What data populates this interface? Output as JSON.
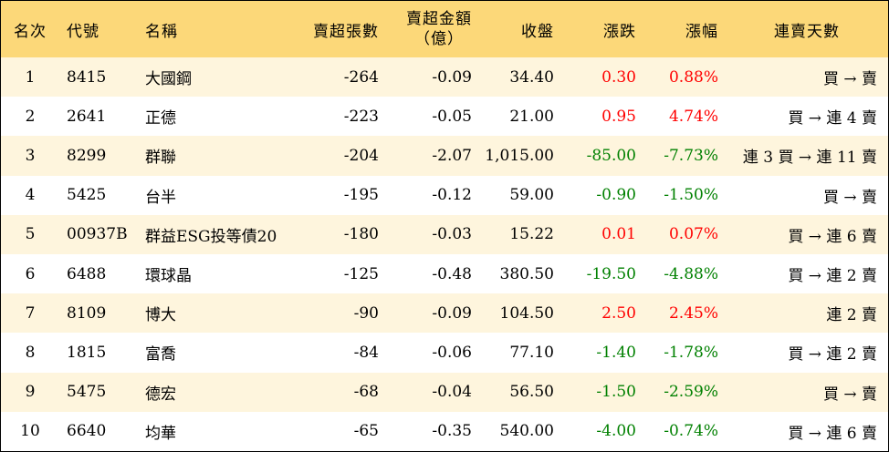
{
  "headers": {
    "rank": "名次",
    "code": "代號",
    "name": "名稱",
    "net_sell_qty": "賣超張數",
    "net_sell_amt_line1": "賣超金額",
    "net_sell_amt_line2": "（億）",
    "close": "收盤",
    "change": "漲跌",
    "change_pct": "漲幅",
    "streak": "連賣天數"
  },
  "colors": {
    "header_bg": "#fcd879",
    "odd_row_bg": "#fef5dd",
    "up": "#ff0000",
    "down": "#008000"
  },
  "rows": [
    {
      "rank": "1",
      "code": "8415",
      "name": "大國鋼",
      "qty": "-264",
      "amt": "-0.09",
      "close": "34.40",
      "change": "0.30",
      "pct": "0.88%",
      "dir": "up",
      "streak": "買 → 賣"
    },
    {
      "rank": "2",
      "code": "2641",
      "name": "正德",
      "qty": "-223",
      "amt": "-0.05",
      "close": "21.00",
      "change": "0.95",
      "pct": "4.74%",
      "dir": "up",
      "streak": "買 → 連 4 賣"
    },
    {
      "rank": "3",
      "code": "8299",
      "name": "群聯",
      "qty": "-204",
      "amt": "-2.07",
      "close": "1,015.00",
      "change": "-85.00",
      "pct": "-7.73%",
      "dir": "down",
      "streak": "連 3 買 → 連 11 賣"
    },
    {
      "rank": "4",
      "code": "5425",
      "name": "台半",
      "qty": "-195",
      "amt": "-0.12",
      "close": "59.00",
      "change": "-0.90",
      "pct": "-1.50%",
      "dir": "down",
      "streak": "買 → 賣"
    },
    {
      "rank": "5",
      "code": "00937B",
      "name": "群益ESG投等債20",
      "qty": "-180",
      "amt": "-0.03",
      "close": "15.22",
      "change": "0.01",
      "pct": "0.07%",
      "dir": "up",
      "streak": "買 → 連 6 賣"
    },
    {
      "rank": "6",
      "code": "6488",
      "name": "環球晶",
      "qty": "-125",
      "amt": "-0.48",
      "close": "380.50",
      "change": "-19.50",
      "pct": "-4.88%",
      "dir": "down",
      "streak": "買 → 連 2 賣"
    },
    {
      "rank": "7",
      "code": "8109",
      "name": "博大",
      "qty": "-90",
      "amt": "-0.09",
      "close": "104.50",
      "change": "2.50",
      "pct": "2.45%",
      "dir": "up",
      "streak": "連 2 賣"
    },
    {
      "rank": "8",
      "code": "1815",
      "name": "富喬",
      "qty": "-84",
      "amt": "-0.06",
      "close": "77.10",
      "change": "-1.40",
      "pct": "-1.78%",
      "dir": "down",
      "streak": "買 → 連 2 賣"
    },
    {
      "rank": "9",
      "code": "5475",
      "name": "德宏",
      "qty": "-68",
      "amt": "-0.04",
      "close": "56.50",
      "change": "-1.50",
      "pct": "-2.59%",
      "dir": "down",
      "streak": "買 → 賣"
    },
    {
      "rank": "10",
      "code": "6640",
      "name": "均華",
      "qty": "-65",
      "amt": "-0.35",
      "close": "540.00",
      "change": "-4.00",
      "pct": "-0.74%",
      "dir": "down",
      "streak": "買 → 連 6 賣"
    }
  ]
}
